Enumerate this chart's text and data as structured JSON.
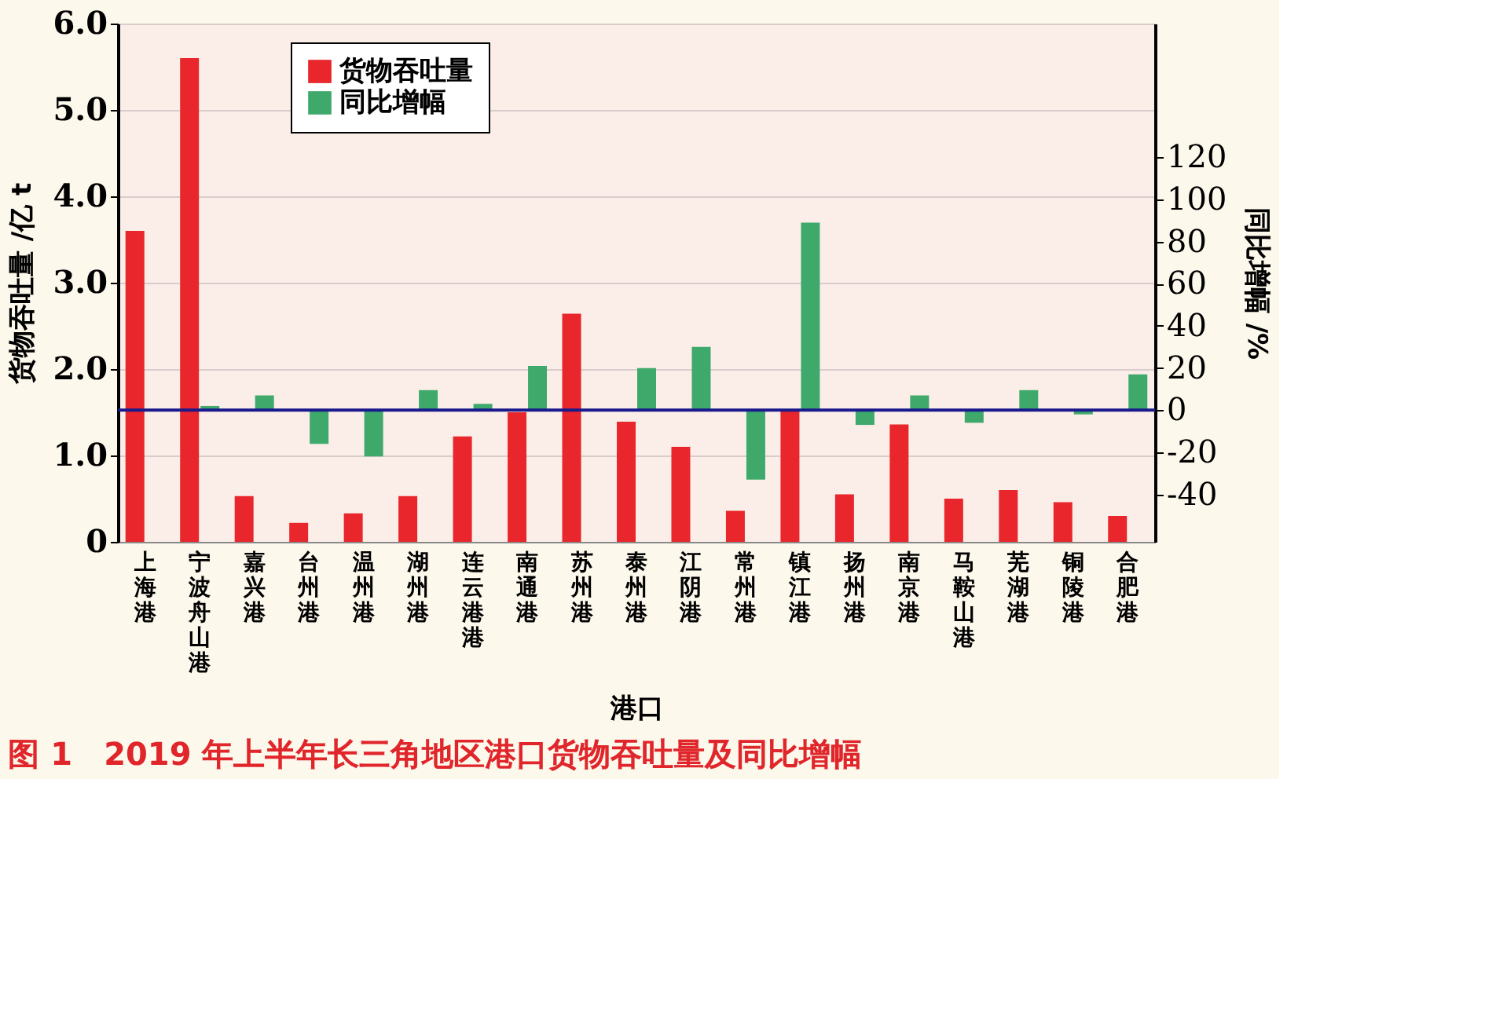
{
  "chart_data": {
    "type": "bar",
    "title": "图 1　2019 年上半年长三角地区港口货物吞吐量及同比增幅",
    "xlabel": "港口",
    "ylabel": "货物吞吐量 /亿 t",
    "y2label": "同比增幅 /%",
    "categories": [
      "上海港",
      "宁波舟山港",
      "嘉兴港",
      "台州港",
      "温州港",
      "湖州港",
      "连云港港",
      "南通港",
      "苏州港",
      "泰州港",
      "江阴港",
      "常州港",
      "镇江港",
      "扬州港",
      "南京港",
      "马鞍山港",
      "芜湖港",
      "铜陵港",
      "合肥港"
    ],
    "series": [
      {
        "name": "货物吞吐量",
        "color": "#e8262b",
        "values": [
          3.6,
          5.6,
          0.53,
          0.22,
          0.33,
          0.53,
          1.22,
          1.5,
          2.64,
          1.39,
          1.1,
          0.36,
          1.52,
          0.55,
          1.36,
          0.5,
          0.6,
          0.46,
          0.3
        ]
      },
      {
        "name": "同比增幅",
        "color": "#3fa96b",
        "axis": "y2",
        "values": [
          0,
          2,
          7,
          -16,
          -22,
          9.5,
          3,
          21,
          0,
          20,
          30,
          -33,
          89,
          -7,
          7,
          -6,
          9.5,
          -2,
          17
        ]
      }
    ],
    "ylim": [
      0,
      6
    ],
    "yticks": [
      {
        "value": 0,
        "label": "0"
      },
      {
        "value": 1,
        "label": "1.0"
      },
      {
        "value": 2,
        "label": "2.0"
      },
      {
        "value": 3,
        "label": "3.0"
      },
      {
        "value": 4,
        "label": "4.0"
      },
      {
        "value": 5,
        "label": "5.0"
      },
      {
        "value": 6,
        "label": "6.0"
      }
    ],
    "y2lim": [
      -62.5,
      183.5
    ],
    "y2ticks": [
      -40,
      -20,
      0,
      20,
      40,
      60,
      80,
      100,
      120
    ],
    "ref_lines": [
      {
        "axis": "y2",
        "value": 0,
        "color": "#1a1a8c"
      }
    ],
    "grid": "y",
    "legend": "top left"
  }
}
